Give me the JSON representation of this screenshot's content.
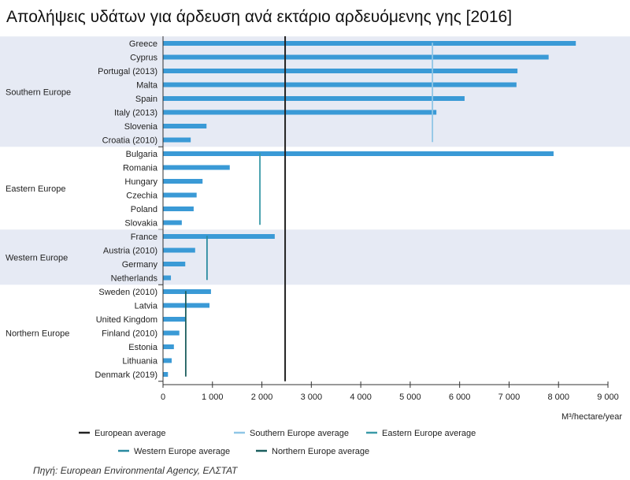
{
  "chart_data": {
    "type": "bar",
    "orientation": "horizontal",
    "title": "Απολήψεις υδάτων για άρδευση ανά εκτάριο αρδευόμενης γης [2016]",
    "xlabel": "M³/hectare/year",
    "xlim": [
      0,
      9000
    ],
    "xticks": [
      0,
      1000,
      2000,
      3000,
      4000,
      5000,
      6000,
      7000,
      8000,
      9000
    ],
    "xtick_labels": [
      "0",
      "1 000",
      "2 000",
      "3 000",
      "4 000",
      "5 000",
      "6 000",
      "7 000",
      "8 000",
      "9 000"
    ],
    "bar_color": "#3a9ad6",
    "groups": [
      {
        "name": "Southern Europe",
        "shaded": true,
        "countries": [
          "Greece",
          "Cyprus",
          "Portugal (2013)",
          "Malta",
          "Spain",
          "Italy (2013)",
          "Slovenia",
          "Croatia (2010)"
        ],
        "values": [
          8350,
          7800,
          7170,
          7150,
          6100,
          5530,
          880,
          560
        ]
      },
      {
        "name": "Eastern Europe",
        "shaded": false,
        "countries": [
          "Bulgaria",
          "Romania",
          "Hungary",
          "Czechia",
          "Poland",
          "Slovakia"
        ],
        "values": [
          7900,
          1350,
          800,
          680,
          620,
          380
        ]
      },
      {
        "name": "Western Europe",
        "shaded": true,
        "countries": [
          "France",
          "Austria (2010)",
          "Germany",
          "Netherlands"
        ],
        "values": [
          2260,
          650,
          450,
          160
        ]
      },
      {
        "name": "Northern Europe",
        "shaded": false,
        "countries": [
          "Sweden (2010)",
          "Latvia",
          "United Kingdom",
          "Finland (2010)",
          "Estonia",
          "Lithuania",
          "Denmark (2019)"
        ],
        "values": [
          970,
          940,
          460,
          330,
          220,
          175,
          100
        ]
      }
    ],
    "averages": [
      {
        "name": "European average",
        "value": 2470,
        "color": "#222222",
        "span": "all"
      },
      {
        "name": "Southern Europe average",
        "value": 5450,
        "color": "#8fc6e6",
        "span": 0
      },
      {
        "name": "Eastern Europe average",
        "value": 1960,
        "color": "#3a9aa8",
        "span": 1
      },
      {
        "name": "Western Europe average",
        "value": 890,
        "color": "#2a8aa0",
        "span": 2
      },
      {
        "name": "Northern Europe average",
        "value": 460,
        "color": "#1b5e5e",
        "span": 3
      }
    ],
    "shade_color": "#e6eaf4",
    "legend_placement": "bottom",
    "source": "Πηγή: European Environmental Agency, ΕΛΣΤΑΤ"
  }
}
